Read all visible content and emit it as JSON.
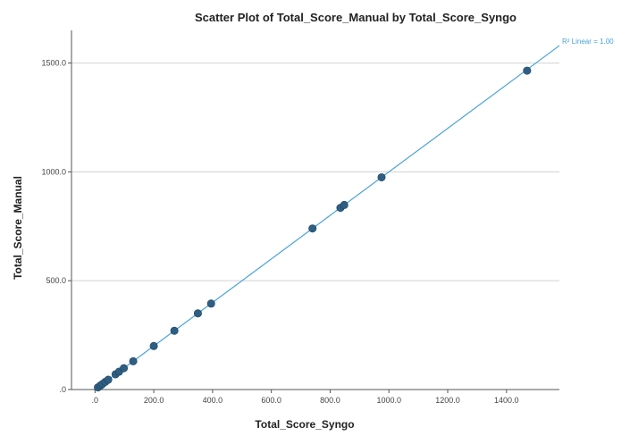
{
  "chart_data": {
    "type": "scatter",
    "title": "Scatter Plot of Total_Score_Manual by Total_Score_Syngo",
    "xlabel": "Total_Score_Syngo",
    "ylabel": "Total_Score_Manual",
    "xlim": [
      -80,
      1580
    ],
    "ylim": [
      0,
      1650
    ],
    "x_ticks": [
      0,
      200,
      400,
      600,
      800,
      1000,
      1200,
      1400
    ],
    "x_tick_labels": [
      ".0",
      "200.0",
      "400.0",
      "600.0",
      "800.0",
      "1000.0",
      "1200.0",
      "1400.0"
    ],
    "y_ticks": [
      0,
      500,
      1000,
      1500
    ],
    "y_tick_labels": [
      ".0",
      "500.0",
      "1000.0",
      "1500.0"
    ],
    "horizontal_grid": true,
    "points": {
      "x": [
        10,
        18,
        25,
        35,
        45,
        70,
        82,
        98,
        130,
        200,
        270,
        350,
        395,
        740,
        835,
        848,
        975,
        1470
      ],
      "y": [
        10,
        18,
        25,
        35,
        45,
        70,
        82,
        98,
        130,
        200,
        270,
        350,
        395,
        740,
        835,
        848,
        975,
        1465
      ]
    },
    "fit_line": {
      "x": [
        0,
        1580
      ],
      "y": [
        0,
        1580
      ],
      "label": "R² Linear = 1.00"
    },
    "colors": {
      "point": "#2e5e82",
      "line": "#4aa3d8",
      "grid": "#d9d9d9",
      "axis": "#555555"
    }
  }
}
